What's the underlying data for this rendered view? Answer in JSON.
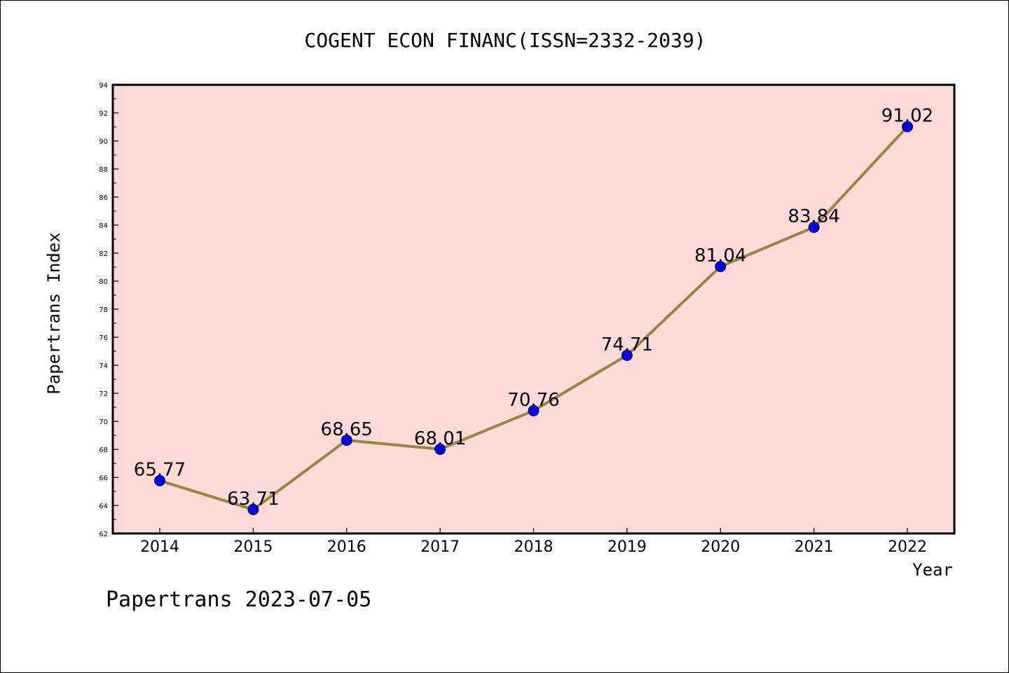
{
  "chart_data": {
    "type": "line",
    "title": "COGENT ECON FINANC(ISSN=2332-2039)",
    "xlabel": "Year",
    "ylabel": "Papertrans Index",
    "categories": [
      "2014",
      "2015",
      "2016",
      "2017",
      "2018",
      "2019",
      "2020",
      "2021",
      "2022"
    ],
    "series": [
      {
        "values": [
          65.77,
          63.71,
          68.65,
          68.01,
          70.76,
          74.71,
          81.04,
          83.84,
          91.02
        ],
        "labels": [
          "65.77",
          "63.71",
          "68.65",
          "68.01",
          "70.76",
          "74.71",
          "81.04",
          "83.84",
          "91.02"
        ]
      }
    ],
    "ylim": [
      62,
      94
    ],
    "yticks": [
      "62",
      "64",
      "66",
      "68",
      "70",
      "72",
      "74",
      "76",
      "78",
      "80",
      "82",
      "84",
      "86",
      "88",
      "90",
      "92",
      "94"
    ],
    "grid": false,
    "colors": {
      "plot_background": "#ffdbd8",
      "line": "#9a8540",
      "marker": "#0000ff"
    }
  },
  "footer": "Papertrans 2023-07-05"
}
